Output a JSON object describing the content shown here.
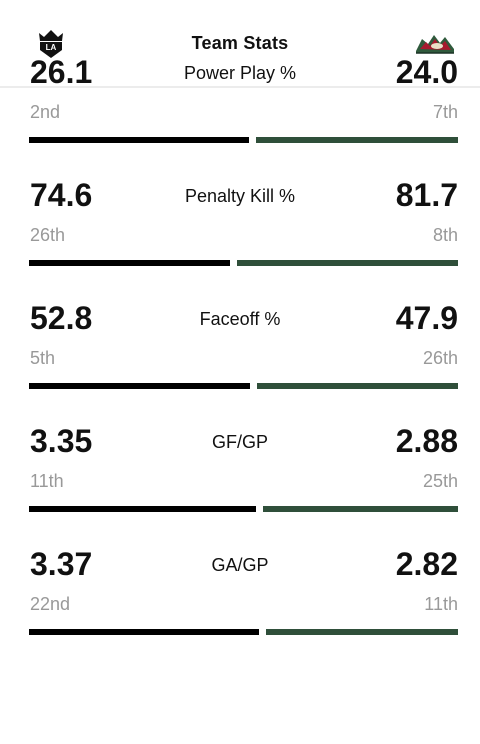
{
  "header": {
    "title": "Team Stats",
    "left_team_logo": "la-kings-crown-logo",
    "right_team_logo": "minnesota-wild-logo"
  },
  "colors": {
    "left_team": "#000000",
    "right_team": "#2f4f3a",
    "rank_text": "#999999"
  },
  "stats": [
    {
      "label": "Power Play %",
      "left_value": "26.1",
      "left_rank": "2nd",
      "right_value": "24.0",
      "right_rank": "7th",
      "left_share": 0.521
    },
    {
      "label": "Penalty Kill %",
      "left_value": "74.6",
      "left_rank": "26th",
      "right_value": "81.7",
      "right_rank": "8th",
      "left_share": 0.477
    },
    {
      "label": "Faceoff %",
      "left_value": "52.8",
      "left_rank": "5th",
      "right_value": "47.9",
      "right_rank": "26th",
      "left_share": 0.524
    },
    {
      "label": "GF/GP",
      "left_value": "3.35",
      "left_rank": "11th",
      "right_value": "2.88",
      "right_rank": "25th",
      "left_share": 0.538
    },
    {
      "label": "GA/GP",
      "left_value": "3.37",
      "left_rank": "22nd",
      "right_value": "2.82",
      "right_rank": "11th",
      "left_share": 0.544
    }
  ]
}
